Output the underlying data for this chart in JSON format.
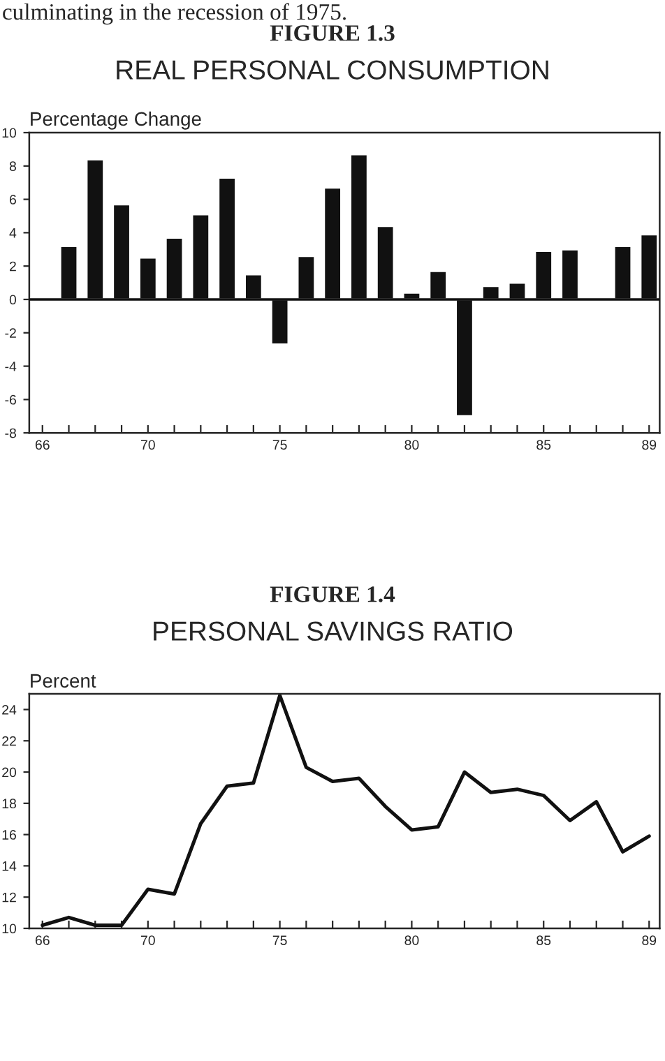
{
  "chart_data": [
    {
      "type": "bar",
      "title": "FIGURE 1.3",
      "subtitle": "REAL PERSONAL CONSUMPTION",
      "ylabel": "Percentage Change",
      "annotations": [
        "culminating in the recession of 1975."
      ],
      "x": [
        67,
        68,
        69,
        70,
        71,
        72,
        73,
        74,
        75,
        76,
        77,
        78,
        79,
        80,
        81,
        82,
        83,
        84,
        85,
        86,
        87,
        88,
        89
      ],
      "series": [
        {
          "color": "#111111",
          "values": [
            3.2,
            8.4,
            5.7,
            2.5,
            3.7,
            5.1,
            7.3,
            1.5,
            -2.7,
            2.6,
            6.7,
            8.7,
            4.4,
            0.4,
            1.7,
            -7.0,
            0.8,
            1.0,
            2.9,
            3.0,
            0.1,
            3.2,
            3.9
          ]
        }
      ],
      "xlim": [
        65.5,
        89.4
      ],
      "ylim": [
        -8,
        10
      ],
      "xticks": [
        66,
        {
          "value": 67,
          "label": null
        },
        {
          "value": 68,
          "label": null
        },
        {
          "value": 69,
          "label": null
        },
        70,
        {
          "value": 71,
          "label": null
        },
        {
          "value": 72,
          "label": null
        },
        {
          "value": 73,
          "label": null
        },
        {
          "value": 74,
          "label": null
        },
        75,
        {
          "value": 76,
          "label": null
        },
        {
          "value": 77,
          "label": null
        },
        {
          "value": 78,
          "label": null
        },
        {
          "value": 79,
          "label": null
        },
        80,
        {
          "value": 81,
          "label": null
        },
        {
          "value": 82,
          "label": null
        },
        {
          "value": 83,
          "label": null
        },
        {
          "value": 84,
          "label": null
        },
        85,
        {
          "value": 86,
          "label": null
        },
        {
          "value": 87,
          "label": null
        },
        {
          "value": 88,
          "label": null
        },
        89
      ],
      "yticks": [
        -8,
        -6,
        -4,
        -2,
        0,
        2,
        4,
        6,
        8,
        10
      ],
      "ref_lines": [
        {
          "axis": "y",
          "value": 0,
          "color": "#111111"
        }
      ],
      "grid": false,
      "legend": false
    },
    {
      "type": "line",
      "title": "FIGURE 1.4",
      "subtitle": "PERSONAL SAVINGS RATIO",
      "ylabel": "Percent",
      "x": [
        66,
        67,
        68,
        69,
        70,
        71,
        72,
        73,
        74,
        75,
        76,
        77,
        78,
        79,
        80,
        81,
        82,
        83,
        84,
        85,
        86,
        87,
        88,
        89
      ],
      "series": [
        {
          "color": "#111111",
          "values": [
            10.2,
            10.7,
            10.2,
            10.2,
            12.5,
            12.2,
            16.7,
            19.1,
            19.3,
            24.9,
            20.3,
            19.4,
            19.6,
            17.8,
            16.3,
            16.5,
            20.0,
            18.7,
            18.9,
            18.5,
            16.9,
            18.1,
            14.9,
            15.9
          ]
        }
      ],
      "xlim": [
        65.5,
        89.4
      ],
      "ylim": [
        10,
        25
      ],
      "xticks": [
        66,
        {
          "value": 67,
          "label": null
        },
        {
          "value": 68,
          "label": null
        },
        {
          "value": 69,
          "label": null
        },
        70,
        {
          "value": 71,
          "label": null
        },
        {
          "value": 72,
          "label": null
        },
        {
          "value": 73,
          "label": null
        },
        {
          "value": 74,
          "label": null
        },
        75,
        {
          "value": 76,
          "label": null
        },
        {
          "value": 77,
          "label": null
        },
        {
          "value": 78,
          "label": null
        },
        {
          "value": 79,
          "label": null
        },
        80,
        {
          "value": 81,
          "label": null
        },
        {
          "value": 82,
          "label": null
        },
        {
          "value": 83,
          "label": null
        },
        {
          "value": 84,
          "label": null
        },
        85,
        {
          "value": 86,
          "label": null
        },
        {
          "value": 87,
          "label": null
        },
        {
          "value": 88,
          "label": null
        },
        89
      ],
      "yticks": [
        10,
        12,
        14,
        16,
        18,
        20,
        22,
        24
      ],
      "grid": false,
      "legend": false,
      "marker": "none",
      "line_style": "solid"
    }
  ]
}
